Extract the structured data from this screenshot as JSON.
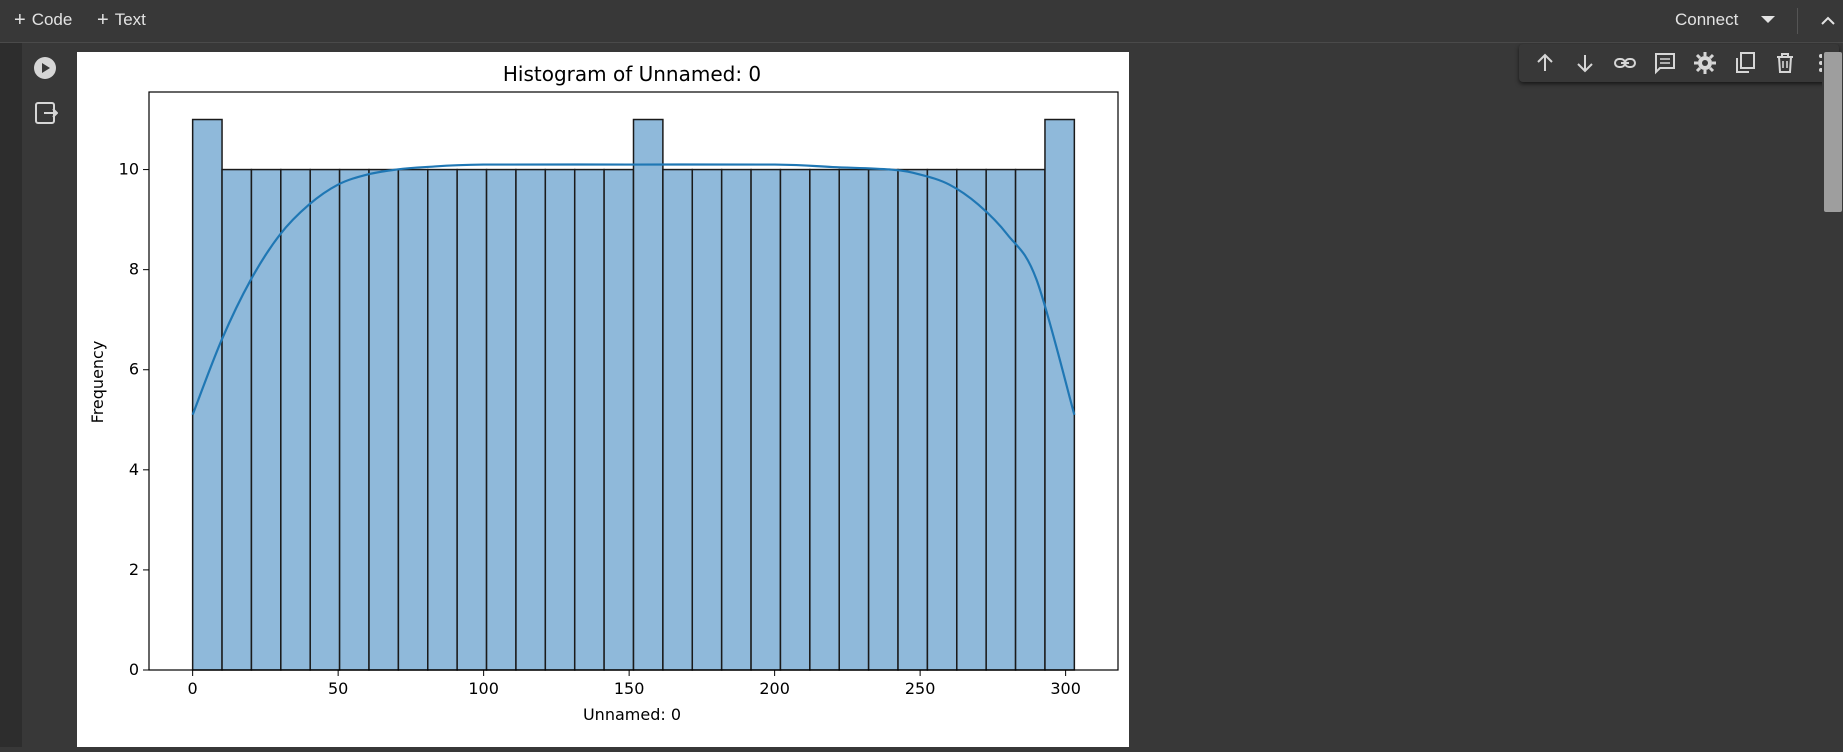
{
  "toolbar_top": {
    "add_code_label": "Code",
    "add_text_label": "Text",
    "connect_label": "Connect"
  },
  "cell_toolbar": {
    "icons": [
      "arrow-up-icon",
      "arrow-down-icon",
      "link-icon",
      "comment-icon",
      "gear-icon",
      "mirror-cell-icon",
      "trash-icon",
      "more-vert-icon"
    ]
  },
  "chart_data": {
    "type": "bar",
    "title": "Histogram of Unnamed: 0",
    "xlabel": "Unnamed: 0",
    "ylabel": "Frequency",
    "xlim": [
      -15,
      318
    ],
    "ylim": [
      0,
      11.55
    ],
    "x_ticks": [
      0,
      50,
      100,
      150,
      200,
      250,
      300
    ],
    "y_ticks": [
      0,
      2,
      4,
      6,
      8,
      10
    ],
    "bin_edges": [
      0,
      10.1,
      20.2,
      30.3,
      40.4,
      50.5,
      60.6,
      70.7,
      80.8,
      90.9,
      101.0,
      111.1,
      121.2,
      131.3,
      141.4,
      151.5,
      161.6,
      171.7,
      181.8,
      191.9,
      202.0,
      212.1,
      222.2,
      232.3,
      242.4,
      252.5,
      262.6,
      272.7,
      282.8,
      292.9,
      303
    ],
    "values": [
      11,
      10,
      10,
      10,
      10,
      10,
      10,
      10,
      10,
      10,
      10,
      10,
      10,
      10,
      10,
      11,
      10,
      10,
      10,
      10,
      10,
      10,
      10,
      10,
      10,
      10,
      10,
      10,
      10,
      11
    ],
    "kde": {
      "x": [
        0,
        10,
        20,
        30,
        40,
        50,
        60,
        70,
        80,
        100,
        150,
        200,
        220,
        240,
        250,
        260,
        270,
        280,
        290,
        303
      ],
      "y": [
        5.1,
        6.6,
        7.8,
        8.7,
        9.3,
        9.7,
        9.9,
        10.0,
        10.05,
        10.1,
        10.1,
        10.1,
        10.05,
        10.0,
        9.9,
        9.7,
        9.3,
        8.7,
        7.8,
        5.1
      ]
    },
    "bar_color": "#8fb9da",
    "line_color": "#1f77b4",
    "grid": false
  }
}
